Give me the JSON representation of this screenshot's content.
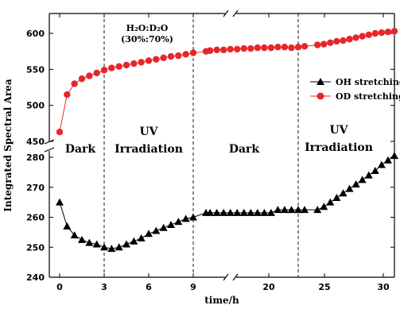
{
  "chart_data": {
    "type": "line",
    "xlabel": "time/h",
    "ylabel": "Integrated Spectral Area",
    "x_ticks": [
      "0",
      "3",
      "6",
      "9",
      "20",
      "25",
      "30"
    ],
    "y_ticks_upper": [
      "450",
      "500",
      "550",
      "600"
    ],
    "y_ticks_lower": [
      "240",
      "250",
      "260",
      "270",
      "280"
    ],
    "annotation": {
      "line1": "H₂O:D₂O",
      "line2": "(30%:70%)"
    },
    "regions": [
      "Dark",
      "UV",
      "Irradiation",
      "Dark",
      "UV",
      "Irradiation"
    ],
    "legend": [
      "OH stretching",
      "OD stretching"
    ],
    "colors": {
      "oh": "#000000",
      "od": "#e8262a"
    },
    "series": [
      {
        "name": "OH stretching",
        "x": [
          0,
          0.5,
          1,
          1.5,
          2,
          2.5,
          3,
          3.5,
          4,
          4.5,
          5,
          5.5,
          6,
          6.5,
          7,
          7.5,
          8,
          8.5,
          9,
          9.9,
          10.5,
          11.5,
          12.5,
          13.5,
          14.5,
          15.5,
          16.5,
          17.5,
          18.5,
          19.5,
          20.5,
          21.5,
          22.5,
          23.5,
          24,
          25,
          25.5,
          26,
          26.5,
          27,
          27.5,
          28,
          28.5,
          29,
          29.5,
          30,
          30.5,
          31
        ],
        "y": [
          265,
          257,
          254,
          252.5,
          251.5,
          251,
          250,
          249.5,
          250,
          251,
          252,
          253,
          254.5,
          255.5,
          256.5,
          257.5,
          258.5,
          259.5,
          260,
          261.5,
          261.5,
          261.5,
          261.5,
          261.5,
          261.5,
          261.5,
          261.5,
          261.5,
          261.5,
          261.5,
          262.5,
          262.5,
          262.5,
          262.5,
          262.5,
          262.5,
          263.5,
          265,
          266.5,
          268,
          269.5,
          271,
          272.5,
          274,
          275.5,
          277.5,
          279,
          280.5
        ]
      },
      {
        "name": "OD stretching",
        "x": [
          0,
          0.5,
          1,
          1.5,
          2,
          2.5,
          3,
          3.5,
          4,
          4.5,
          5,
          5.5,
          6,
          6.5,
          7,
          7.5,
          8,
          8.5,
          9,
          9.9,
          10.5,
          11.5,
          12.5,
          13.5,
          14.5,
          15.5,
          16.5,
          17.5,
          18.5,
          19.5,
          20.5,
          21.5,
          22.5,
          23.5,
          24,
          25,
          25.5,
          26,
          26.5,
          27,
          27.5,
          28,
          28.5,
          29,
          29.5,
          30,
          30.5,
          31
        ],
        "y": [
          463,
          515,
          530,
          537,
          541,
          545,
          549,
          552,
          554,
          556,
          558,
          560,
          562,
          564,
          566,
          568,
          569,
          571,
          573,
          575,
          576,
          577,
          577,
          578,
          578,
          579,
          579,
          580,
          580,
          580,
          581,
          581,
          580,
          581,
          582,
          584,
          585,
          587,
          589,
          590,
          592,
          594,
          596,
          598,
          600,
          601,
          602,
          603
        ]
      }
    ],
    "xlim": [
      -0.5,
      32
    ],
    "ylim_upper": [
      440,
      610
    ],
    "ylim_lower": [
      240,
      283
    ]
  }
}
